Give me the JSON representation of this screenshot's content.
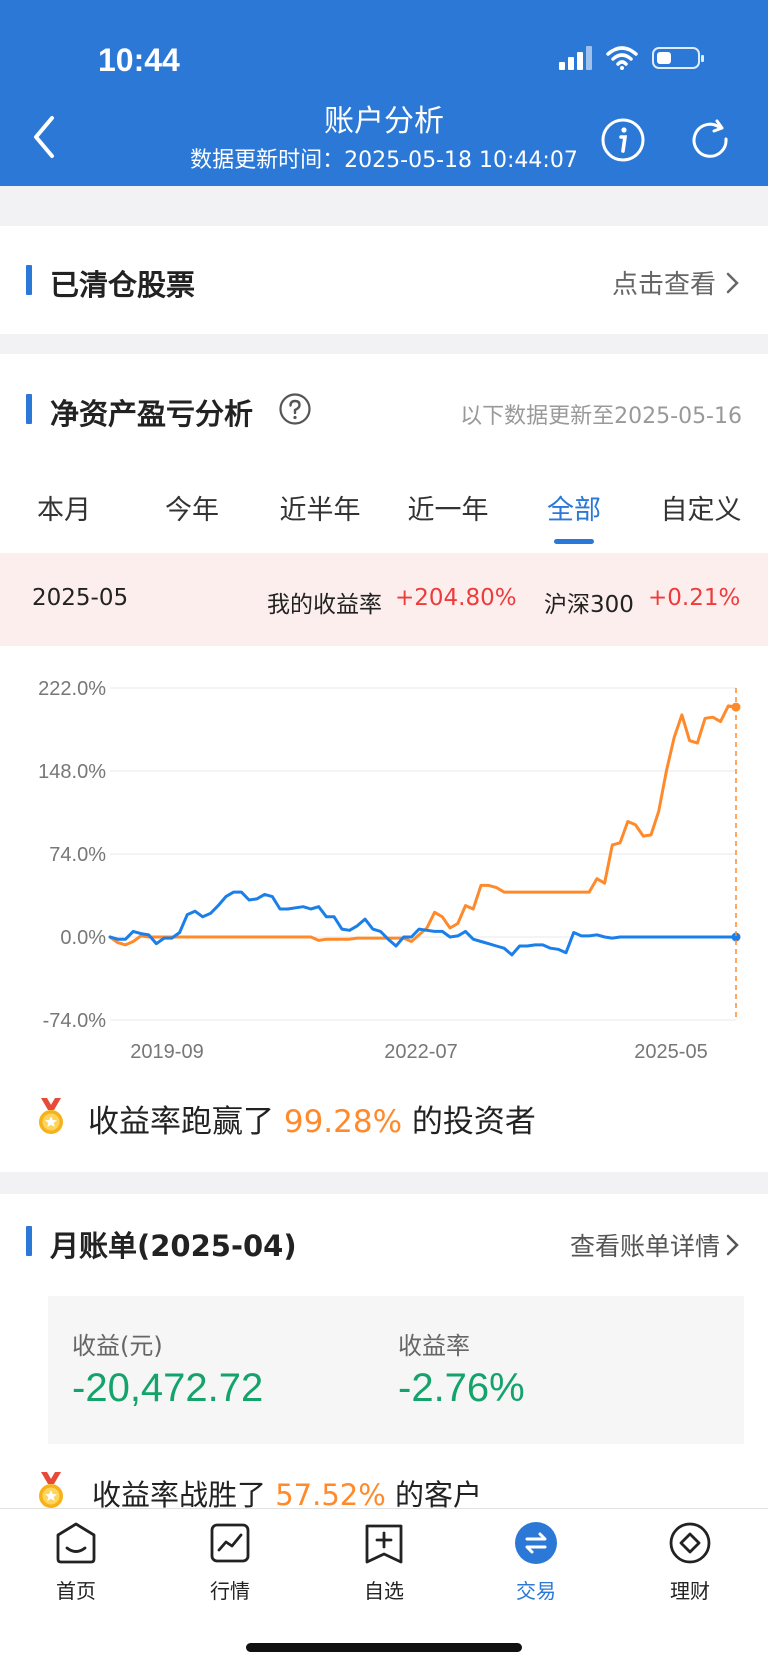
{
  "status": {
    "time": "10:44"
  },
  "header": {
    "title": "账户分析",
    "update_label": "数据更新时间：",
    "update_time": "2025-05-18 10:44:07",
    "accent": "#2b78d6"
  },
  "cleared": {
    "title": "已清仓股票",
    "link": "点击查看"
  },
  "pnl": {
    "title": "净资产盈亏分析",
    "note": "以下数据更新至2025-05-16",
    "tabs": [
      "本月",
      "今年",
      "近半年",
      "近一年",
      "全部",
      "自定义"
    ],
    "active_tab": "全部",
    "summary": {
      "date": "2025-05",
      "my_label": "我的收益率",
      "my_value": "+204.80%",
      "index_label": "沪深300",
      "index_value": "+0.21%"
    },
    "beat": {
      "prefix": "收益率跑赢了",
      "value": "99.28%",
      "suffix": "的投资者"
    }
  },
  "chart_data": {
    "type": "line",
    "y_ticks": [
      "222.0%",
      "148.0%",
      "74.0%",
      "0.0%",
      "-74.0%"
    ],
    "x_ticks": [
      "2019-09",
      "2022-07",
      "2025-05"
    ],
    "ylim": [
      -74,
      222
    ],
    "grid": true,
    "series": [
      {
        "color": "#ff8a2b",
        "values": [
          0,
          -5,
          -7,
          -4,
          1,
          0,
          0,
          0,
          0,
          0,
          0,
          0,
          0,
          0,
          0,
          0,
          0,
          0,
          0,
          0,
          0,
          0,
          0,
          0,
          0,
          0,
          0,
          -3,
          -2,
          -2,
          -2,
          -2,
          -1,
          -1,
          -1,
          -1,
          -1,
          -1,
          -1,
          -4,
          2,
          8,
          22,
          18,
          8,
          12,
          28,
          25,
          46,
          46,
          44,
          40,
          40,
          40,
          40,
          40,
          40,
          40,
          40,
          40,
          40,
          40,
          40,
          52,
          48,
          82,
          84,
          103,
          100,
          90,
          91,
          112,
          148,
          178,
          198,
          175,
          173,
          195,
          196,
          192,
          206,
          205
        ]
      },
      {
        "color": "#1a7fe8",
        "values": [
          0,
          -2,
          -2,
          5,
          3,
          2,
          -6,
          -1,
          -1,
          4,
          20,
          23,
          18,
          21,
          28,
          36,
          40,
          40,
          33,
          34,
          38,
          36,
          25,
          25,
          26,
          27,
          25,
          27,
          18,
          18,
          7,
          6,
          10,
          16,
          7,
          5,
          -2,
          -8,
          0,
          0,
          7,
          6,
          5,
          5,
          0,
          1,
          5,
          -2,
          -4,
          -6,
          -8,
          -10,
          -16,
          -8,
          -8,
          -7,
          -7,
          -10,
          -11,
          -14,
          4,
          1,
          1,
          2,
          0,
          -1,
          0,
          0,
          0,
          0,
          0,
          0,
          0,
          0,
          0,
          0,
          0,
          0,
          0,
          0,
          0,
          0
        ]
      }
    ]
  },
  "bill": {
    "title": "月账单(2025-04)",
    "link": "查看账单详情",
    "profit_label": "收益(元)",
    "profit_value": "-20,472.72",
    "rate_label": "收益率",
    "rate_value": "-2.76%",
    "beat": {
      "prefix": "收益率战胜了",
      "value": "57.52%",
      "suffix": "的客户"
    }
  },
  "tabbar": {
    "items": [
      {
        "label": "首页",
        "icon": "home-icon"
      },
      {
        "label": "行情",
        "icon": "market-chart-icon"
      },
      {
        "label": "自选",
        "icon": "watchlist-add-icon"
      },
      {
        "label": "交易",
        "icon": "trade-exchange-icon"
      },
      {
        "label": "理财",
        "icon": "wealth-diamond-icon"
      }
    ],
    "active": "交易"
  }
}
